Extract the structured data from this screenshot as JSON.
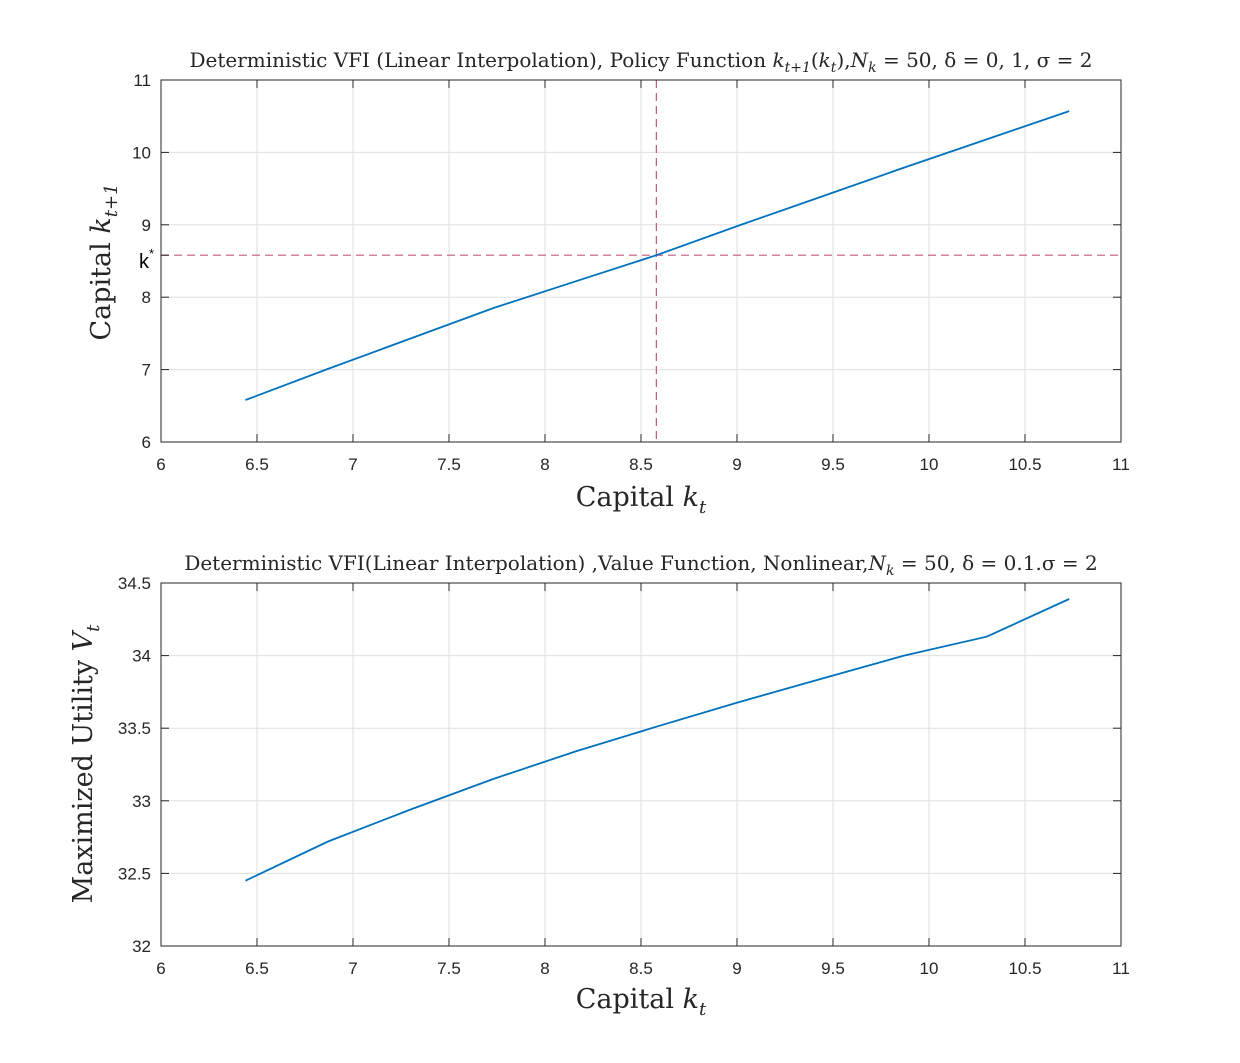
{
  "colors": {
    "series": "#0072bd",
    "ref_line": "#c0587e",
    "axis": "#262626",
    "grid": "#dfdfdf"
  },
  "chart_data": [
    {
      "type": "line",
      "title": "Deterministic VFI (Linear Interpolation), Policy Function k_{t+1}(k_t),N_k = 50, δ = 0, 1, σ = 2",
      "title_parts": {
        "pre": "Deterministic VFI (Linear Interpolation), Policy Function ",
        "k": "k",
        "sub_t1": "t+1",
        "open": "(",
        "k2": "k",
        "sub_t": "t",
        "close": "),",
        "N": "N",
        "sub_k": "k",
        "rest": " = 50, δ = 0, 1, σ = 2"
      },
      "xlabel": {
        "text": "Capital ",
        "var": "k",
        "sub": "t"
      },
      "ylabel": {
        "text": "Capital ",
        "var": "k",
        "sub": "t+1"
      },
      "xlim": [
        6,
        11
      ],
      "ylim": [
        6,
        11
      ],
      "x_ticks": [
        "6",
        "6.5",
        "7",
        "7.5",
        "8",
        "8.5",
        "9",
        "9.5",
        "10",
        "10.5",
        "11"
      ],
      "y_ticks": [
        "6",
        "7",
        "8",
        "9",
        "10",
        "11"
      ],
      "extra_y_tick": {
        "label": "k",
        "sup": "*",
        "value": 8.58
      },
      "grid": true,
      "reference_lines": {
        "k_star": 8.58
      },
      "series": [
        {
          "x": [
            6.44,
            6.87,
            7.3,
            7.73,
            8.16,
            8.58,
            9.01,
            9.44,
            9.87,
            10.3,
            10.73
          ],
          "y": [
            6.58,
            7.01,
            7.43,
            7.85,
            8.22,
            8.58,
            8.99,
            9.39,
            9.79,
            10.18,
            10.57
          ]
        }
      ]
    },
    {
      "type": "line",
      "title": "Deterministic VFI(Linear Interpolation) ,Value Function, Nonlinear,N_k = 50, δ = 0.1.σ = 2",
      "title_parts": {
        "pre": "Deterministic VFI(Linear Interpolation) ,Value Function, Nonlinear,",
        "N": "N",
        "sub_k": "k",
        "rest": " = 50, δ = 0.1.σ = 2"
      },
      "xlabel": {
        "text": "Capital ",
        "var": "k",
        "sub": "t"
      },
      "ylabel": {
        "text": "Maximized Utility ",
        "var": "V",
        "sub": "t"
      },
      "xlim": [
        6,
        11
      ],
      "ylim": [
        32,
        34.5
      ],
      "x_ticks": [
        "6",
        "6.5",
        "7",
        "7.5",
        "8",
        "8.5",
        "9",
        "9.5",
        "10",
        "10.5",
        "11"
      ],
      "y_ticks": [
        "32",
        "32.5",
        "33",
        "33.5",
        "34",
        "34.5"
      ],
      "grid": true,
      "series": [
        {
          "x": [
            6.44,
            6.87,
            7.3,
            7.73,
            8.16,
            8.58,
            9.01,
            9.44,
            9.87,
            10.3,
            10.73
          ],
          "y": [
            32.45,
            32.72,
            32.94,
            33.15,
            33.34,
            33.51,
            33.68,
            33.84,
            34.0,
            34.13,
            34.39
          ]
        }
      ]
    }
  ]
}
